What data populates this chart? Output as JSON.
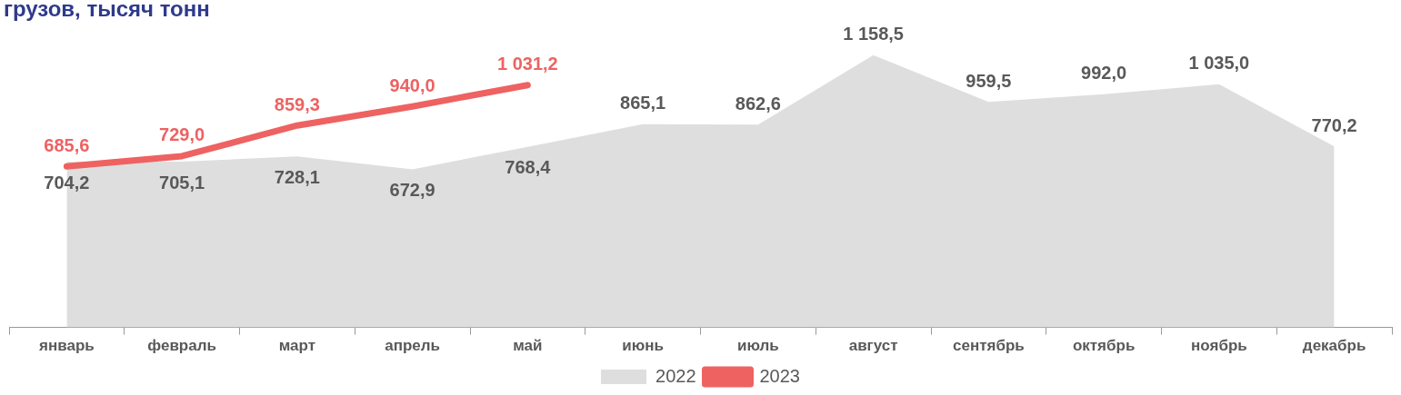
{
  "chart_data": {
    "type": "area",
    "title": "грузов, тысяч тонн",
    "categories": [
      "январь",
      "февраль",
      "март",
      "апрель",
      "май",
      "июнь",
      "июль",
      "август",
      "сентябрь",
      "октябрь",
      "ноябрь",
      "декабрь"
    ],
    "series": [
      {
        "name": "2022",
        "type": "area",
        "color": "#dedede",
        "values": [
          704.2,
          705.1,
          728.1,
          672.9,
          768.4,
          865.1,
          862.6,
          1158.5,
          959.5,
          992.0,
          1035.0,
          770.2
        ],
        "value_labels": [
          "704,2",
          "705,1",
          "728,1",
          "672,9",
          "768,4",
          "865,1",
          "862,6",
          "1 158,5",
          "959,5",
          "992,0",
          "1 035,0",
          "770,2"
        ]
      },
      {
        "name": "2023",
        "type": "line",
        "color": "#ee6262",
        "values": [
          685.6,
          729.0,
          859.3,
          940.0,
          1031.2,
          null,
          null,
          null,
          null,
          null,
          null,
          null
        ],
        "value_labels": [
          "685,6",
          "729,0",
          "859,3",
          "940,0",
          "1 031,2",
          null,
          null,
          null,
          null,
          null,
          null,
          null
        ]
      }
    ],
    "legend": "bottom",
    "grid": false
  }
}
